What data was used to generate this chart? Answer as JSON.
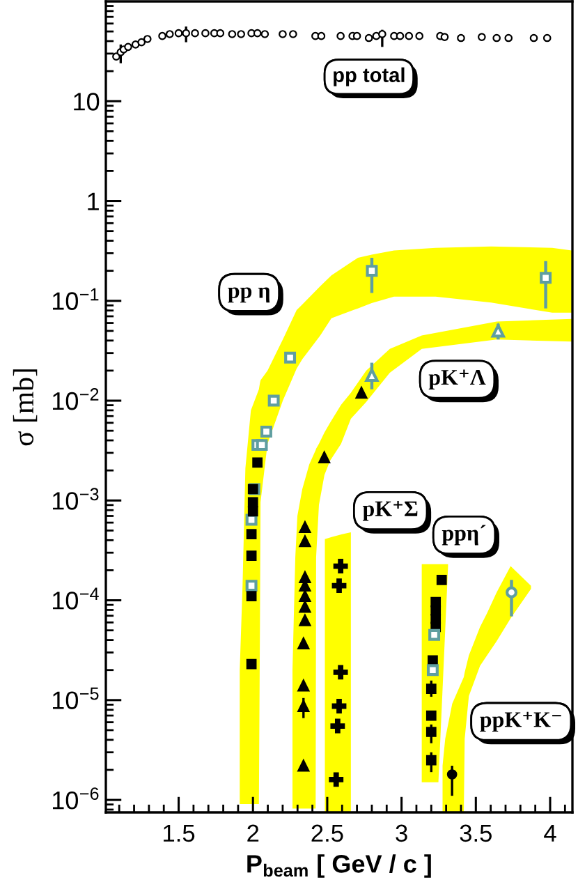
{
  "chart_data": {
    "type": "scatter",
    "log": "y",
    "xlabel": "P$_{beam}$ [ GeV / c ]",
    "ylabel": "σ [mb]",
    "xlim": [
      1.01,
      4.15
    ],
    "xticks": [
      1.5,
      2,
      2.5,
      3,
      3.5,
      4
    ],
    "ylim": [
      7.5e-07,
      100
    ],
    "yticks": [
      {
        "value": 1e-06,
        "label": "10$^{−6}$"
      },
      {
        "value": 1e-05,
        "label": "10$^{−5}$"
      },
      {
        "value": 0.0001,
        "label": "10$^{−4}$"
      },
      {
        "value": 0.001,
        "label": "10$^{−3}$"
      },
      {
        "value": 0.01,
        "label": "10$^{−2}$"
      },
      {
        "value": 0.1,
        "label": "10$^{−1}$"
      },
      1,
      10
    ],
    "annotations": [
      "pp total",
      "pp η",
      "pK⁺Λ",
      "pK⁺Σ",
      "ppη´",
      "ppK⁺K⁻"
    ],
    "series": [
      {
        "type": "area",
        "color": "#ffff00",
        "x": [
          2.484,
          2.53,
          2.6,
          2.659
        ],
        "values": [
          null,
          null,
          null,
          null
        ],
        "upper": [
          0.00041,
          0.00043,
          0.00046,
          0.00048
        ],
        "lower": [
          7.5e-07,
          7.5e-07,
          7.5e-07,
          7.5e-07
        ]
      },
      {
        "type": "area",
        "color": "#ffff00",
        "x": [
          3.136,
          3.19,
          3.248,
          3.313
        ],
        "values": [
          null,
          null,
          null,
          null
        ],
        "upper": [
          0.00023,
          0.00023,
          0.00023,
          0.00023
        ],
        "lower": [
          1.5e-06,
          1.5e-06,
          1.5e-06,
          0.00022
        ]
      },
      {
        "type": "area",
        "color": "#ffff00",
        "x": [
          3.276,
          3.294,
          3.341,
          3.419,
          3.425,
          3.453,
          3.528,
          3.575,
          3.64,
          3.734,
          3.871
        ],
        "values": [
          null,
          null,
          null,
          null,
          null,
          null,
          null,
          null,
          null,
          null,
          null
        ],
        "upper": [
          2.2e-06,
          4.1e-06,
          9.2e-06,
          1.7e-05,
          1.9e-05,
          2.8e-05,
          5.4e-05,
          7.4e-05,
          0.00012,
          0.00022,
          0.00014
        ],
        "lower": [
          7.5e-07,
          7.5e-07,
          7.5e-07,
          7.5e-07,
          4.1e-06,
          1.1e-05,
          2.2e-05,
          2.8e-05,
          3.9e-05,
          6.6e-05,
          0.00013
        ]
      },
      {
        "type": "area",
        "color": "#ffff00",
        "x": [
          2.266,
          2.285,
          2.299,
          2.332,
          2.379,
          2.422,
          2.425,
          2.444,
          2.481,
          2.519,
          2.593,
          2.659,
          2.762,
          2.921,
          3.136,
          3.64,
          4.145
        ],
        "values": [
          null,
          null,
          null,
          null,
          null,
          null,
          null,
          null,
          null,
          null,
          null,
          null,
          null,
          null,
          null,
          null,
          null
        ],
        "upper": [
          2e-05,
          0.00027,
          0.0007,
          0.0013,
          0.0023,
          0.0032,
          0.0033,
          0.0037,
          0.0048,
          0.006,
          0.0091,
          0.012,
          0.02,
          0.033,
          0.045,
          0.062,
          0.066
        ],
        "lower": [
          8.2e-07,
          8.2e-07,
          8.2e-07,
          8.2e-07,
          8.2e-07,
          8.2e-07,
          0.00027,
          0.0009,
          0.0018,
          0.0025,
          0.0037,
          0.0066,
          0.0097,
          0.019,
          0.033,
          0.041,
          0.039
        ]
      },
      {
        "type": "area",
        "color": "#ffff00",
        "x": [
          1.911,
          1.93,
          1.949,
          1.986,
          2.04,
          2.047,
          2.051,
          2.098,
          2.201,
          2.294,
          2.332,
          2.453,
          2.528,
          2.706,
          2.799,
          2.949,
          3.229,
          3.603,
          4.014,
          4.145
        ],
        "values": [
          null,
          null,
          null,
          null,
          null,
          null,
          null,
          null,
          null,
          null,
          null,
          null,
          null,
          null,
          null,
          null,
          null,
          null,
          null,
          null
        ],
        "upper": [
          2e-05,
          0.00014,
          0.0021,
          0.008,
          0.013,
          0.015,
          0.016,
          0.02,
          0.041,
          0.081,
          0.092,
          0.14,
          0.18,
          0.27,
          0.29,
          0.32,
          0.34,
          0.35,
          0.34,
          0.32
        ],
        "lower": [
          9.1e-07,
          9.1e-07,
          9.1e-07,
          9.1e-07,
          9.1e-07,
          5.4e-05,
          0.00096,
          0.0037,
          0.01,
          0.021,
          0.026,
          0.045,
          0.067,
          0.084,
          0.095,
          0.11,
          0.11,
          0.096,
          0.076,
          0.076
        ]
      },
      {
        "marker": "circle",
        "color": "#000000",
        "x": [
          1.08,
          1.11,
          1.13,
          1.16,
          1.21,
          1.25,
          1.29,
          1.39,
          1.44,
          1.5,
          1.55,
          1.61,
          1.68,
          1.74,
          1.78,
          1.86,
          1.92,
          1.99,
          2.03,
          2.08,
          2.2,
          2.27,
          2.42,
          2.46,
          2.59,
          2.67,
          2.7,
          2.78,
          2.83,
          2.87,
          2.95,
          2.99,
          3.05,
          3.12,
          3.26,
          3.29,
          3.4,
          3.54,
          3.64,
          3.72,
          3.89,
          3.98
        ],
        "values": [
          28,
          31,
          33,
          35,
          37,
          39,
          42,
          45,
          47,
          48,
          48,
          48,
          48,
          48,
          48,
          47,
          47,
          48,
          48,
          47,
          47,
          47,
          45,
          45,
          45,
          45,
          45,
          43,
          45,
          47,
          45,
          45,
          45,
          45,
          45,
          44,
          43,
          44,
          43,
          43,
          43,
          43
        ],
        "errors": [
          null,
          [
            24,
            37
          ],
          null,
          null,
          null,
          null,
          null,
          null,
          null,
          null,
          [
            39,
            56
          ],
          null,
          null,
          null,
          null,
          null,
          null,
          null,
          null,
          null,
          null,
          null,
          null,
          null,
          null,
          null,
          null,
          null,
          null,
          [
            35,
            52
          ],
          null,
          null,
          null,
          null,
          null,
          null,
          null,
          null,
          null,
          null,
          null,
          null
        ]
      },
      {
        "marker": "square",
        "color": "#5f9ea0",
        "x": [
          1.99,
          1.99,
          2.01,
          2.03,
          2.06,
          2.09,
          2.14,
          2.25,
          2.8,
          3.97
        ],
        "values": [
          0.00014,
          0.00064,
          0.0013,
          0.0036,
          0.0036,
          0.0049,
          0.01,
          0.027,
          0.2,
          0.17
        ],
        "errors": [
          null,
          null,
          null,
          null,
          null,
          null,
          null,
          null,
          [
            0.12,
            0.27
          ],
          [
            0.084,
            0.25
          ]
        ]
      },
      {
        "marker": "square",
        "color": "#000000",
        "x": [
          1.99,
          1.99,
          1.99,
          1.99,
          2.0,
          2.0,
          2.0,
          2.03
        ],
        "values": [
          2.3e-05,
          0.00011,
          0.00028,
          0.00046,
          0.00078,
          0.00096,
          0.0013,
          0.0024
        ]
      },
      {
        "marker": "triangle",
        "color": "#000000",
        "x": [
          2.34,
          2.34,
          2.34,
          2.34,
          2.35,
          2.35,
          2.35,
          2.35,
          2.35,
          2.35,
          2.35,
          2.48,
          2.73
        ],
        "values": [
          2.2e-06,
          8.7e-06,
          1.4e-05,
          3.7e-05,
          6.3e-05,
          8.6e-05,
          0.00011,
          0.00014,
          0.00017,
          0.00039,
          0.00054,
          0.0027,
          0.012
        ],
        "errors": [
          null,
          [
            6.6e-06,
            1.05e-05
          ],
          null,
          null,
          null,
          null,
          null,
          null,
          null,
          null,
          null,
          null,
          null
        ]
      },
      {
        "marker": "triangle",
        "color": "#5f9ea0",
        "x": [
          2.8,
          3.65
        ],
        "values": [
          0.018,
          0.05
        ],
        "errors": [
          [
            0.013,
            0.024
          ],
          [
            0.041,
            0.059
          ]
        ]
      },
      {
        "marker": "cross",
        "color": "#000000",
        "x": [
          2.56,
          2.57,
          2.58,
          2.59,
          2.58,
          2.59
        ],
        "values": [
          1.6e-06,
          5.5e-06,
          8.7e-06,
          1.9e-05,
          0.00014,
          0.00022
        ]
      },
      {
        "marker": "square",
        "color": "#000000",
        "x": [
          3.2,
          3.2,
          3.2,
          3.2,
          3.21,
          3.23,
          3.23,
          3.23,
          3.23,
          3.27
        ],
        "values": [
          2.5e-06,
          4.8e-06,
          7e-06,
          1.3e-05,
          2.5e-05,
          5.4e-05,
          6.5e-05,
          7.9e-05,
          9.6e-05,
          0.00016
        ],
        "errors": [
          [
            1.9e-06,
            3e-06
          ],
          [
            3.7e-06,
            5.7e-06
          ],
          null,
          [
            1.08e-05,
            1.57e-05
          ],
          null,
          null,
          null,
          null,
          null,
          null
        ]
      },
      {
        "marker": "square",
        "color": "#5f9ea0",
        "x": [
          3.21,
          3.22
        ],
        "values": [
          2e-05,
          4.5e-05
        ]
      },
      {
        "marker": "circle",
        "color": "#000000",
        "x": [
          3.34
        ],
        "values": [
          1.8e-06
        ],
        "errors": [
          [
            1.1e-06,
            2.2e-06
          ]
        ]
      },
      {
        "marker": "circle",
        "color": "#5f9ea0",
        "x": [
          3.74
        ],
        "values": [
          0.00012
        ],
        "errors": [
          [
            6.9e-05,
            0.00016
          ]
        ]
      }
    ]
  }
}
